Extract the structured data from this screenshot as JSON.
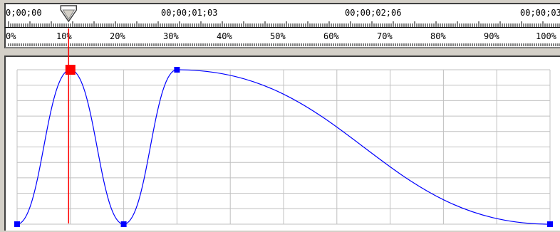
{
  "timeline": {
    "timecodes": [
      "0;00;00",
      "00;00;01;03",
      "00;00;02;06",
      "00;00;03"
    ],
    "percent_labels": [
      "0%",
      "10%",
      "20%",
      "30%",
      "40%",
      "50%",
      "60%",
      "70%",
      "80%",
      "90%",
      "100%"
    ],
    "playhead_percent": 10
  },
  "curve": {
    "keyframes": [
      {
        "percent": 0,
        "value": 0
      },
      {
        "percent": 10,
        "value": 1.0
      },
      {
        "percent": 20,
        "value": 0
      },
      {
        "percent": 30,
        "value": 1.0
      },
      {
        "percent": 100,
        "value": 0
      }
    ],
    "selected_keyframe_index": 1
  },
  "colors": {
    "curve": "#0000ff",
    "keyframe": "#0000ff",
    "selected_keyframe": "#ff0000",
    "playhead": "#ff0000",
    "grid": "#c0c0c0"
  }
}
